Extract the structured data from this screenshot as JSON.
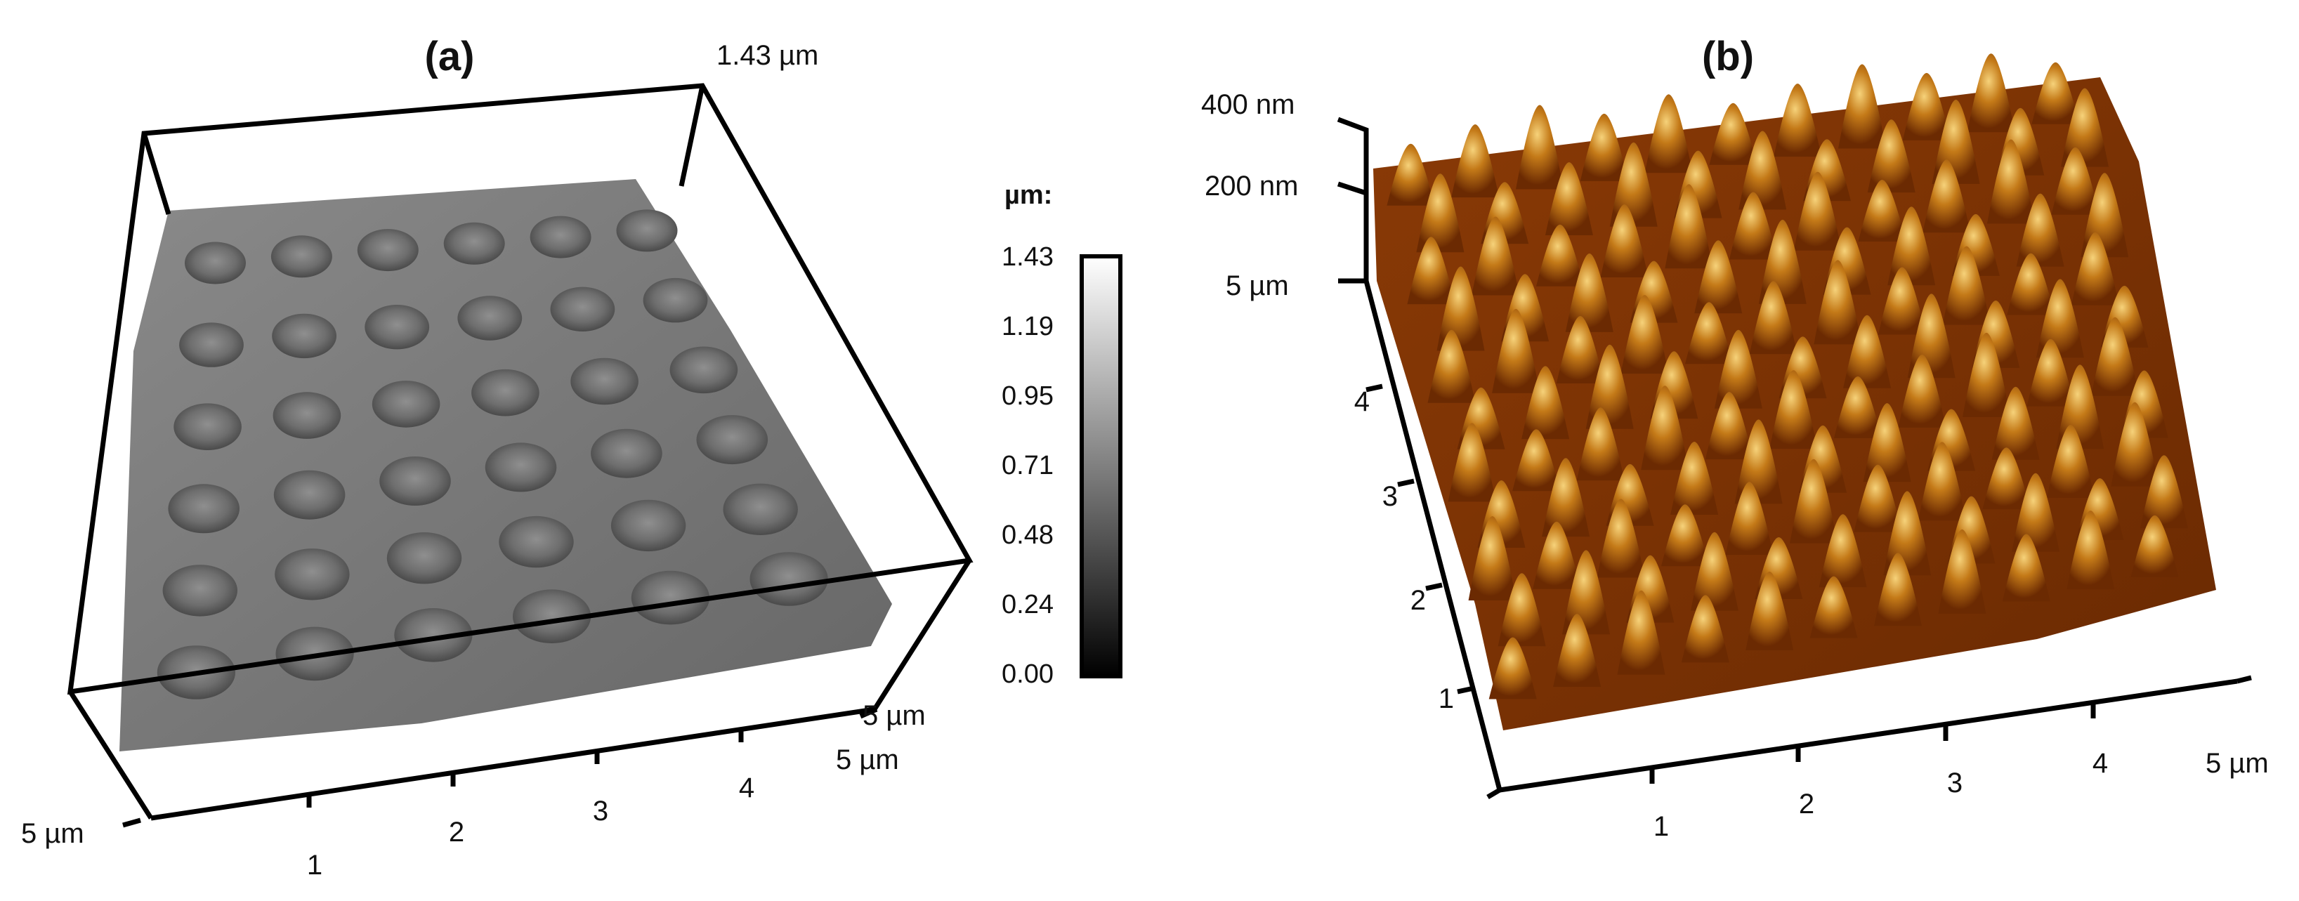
{
  "figure": {
    "panels": [
      {
        "id": "a",
        "title": "(a)",
        "z_max_label": "1.43 µm",
        "x_end_label": "5 µm",
        "y_front_label": "5 µm",
        "y_back_label": "5 µm",
        "x_ticks": [
          "1",
          "2",
          "3",
          "4"
        ],
        "surface_color": "#7a7a7a",
        "colorbar": {
          "unit": "µm:",
          "ticks": [
            "1.43",
            "1.19",
            "0.95",
            "0.71",
            "0.48",
            "0.24",
            "0.00"
          ],
          "top_color": "#ffffff",
          "bottom_color": "#000000"
        }
      },
      {
        "id": "b",
        "title": "(b)",
        "z_labels": [
          "400 nm",
          "200 nm"
        ],
        "y_end_label": "5 µm",
        "x_end_label": "5 µm",
        "y_ticks": [
          "4",
          "3",
          "2",
          "1"
        ],
        "x_ticks": [
          "1",
          "2",
          "3",
          "4"
        ],
        "colors": {
          "dark": "#5a2200",
          "mid": "#b86a12",
          "light": "#f0c060"
        }
      }
    ]
  }
}
